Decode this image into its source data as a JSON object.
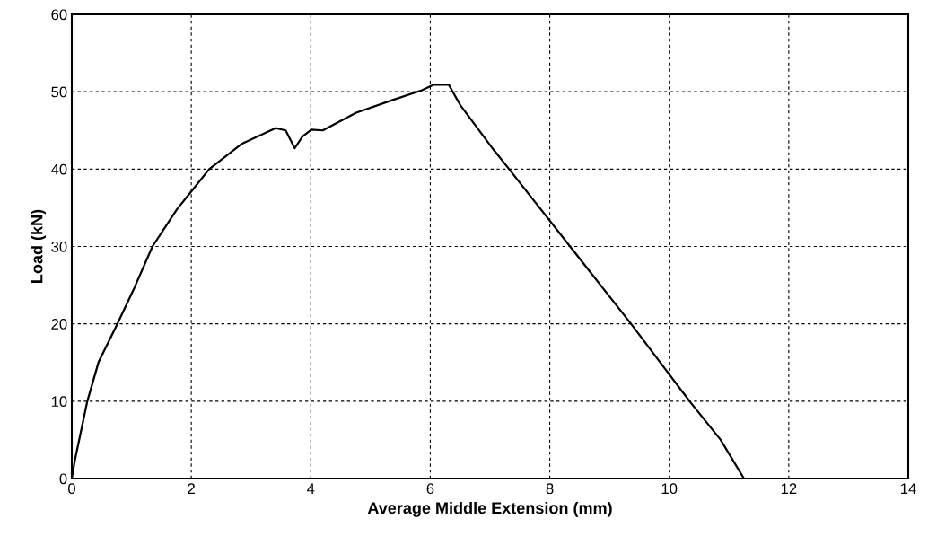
{
  "chart_data": {
    "type": "line",
    "xlabel": "Average Middle Extension (mm)",
    "ylabel": "Load (kN)",
    "xlim": [
      0,
      14
    ],
    "xticks": [
      0,
      2,
      4,
      6,
      8,
      10,
      12,
      14
    ],
    "ylim": [
      0,
      60
    ],
    "yticks": [
      0,
      10,
      20,
      30,
      40,
      50,
      60
    ],
    "grid": true,
    "marker": "none",
    "line_style": "solid",
    "series": [
      {
        "color": "#000000",
        "x": [
          0,
          0.05,
          0.26,
          0.45,
          0.75,
          1.05,
          1.35,
          1.76,
          2.0,
          2.3,
          2.85,
          3.41,
          3.58,
          3.73,
          3.86,
          4.01,
          4.2,
          4.76,
          5.36,
          5.86,
          6.05,
          6.31,
          6.5,
          7.06,
          7.32,
          8.34,
          9.36,
          10.34,
          10.86,
          11.25
        ],
        "values": [
          0,
          2.3,
          10,
          15.1,
          19.8,
          24.7,
          30,
          34.8,
          37.1,
          40.0,
          43.3,
          45.3,
          45.0,
          42.7,
          44.2,
          45.1,
          45.0,
          47.3,
          48.9,
          50.2,
          50.9,
          50.9,
          48.3,
          42.5,
          40,
          30,
          20,
          10,
          5.0,
          0
        ]
      }
    ]
  }
}
